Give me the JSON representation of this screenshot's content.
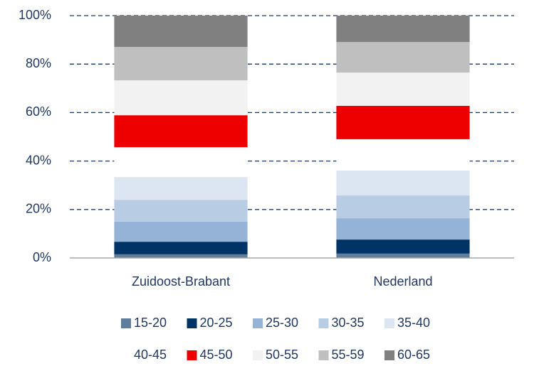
{
  "chart_data": {
    "type": "bar",
    "stacked": true,
    "categories": [
      "Zuidoost-Brabant",
      "Nederland"
    ],
    "series": [
      {
        "name": "15-20",
        "color": "#5f7d9c",
        "values": [
          1.5,
          1.8
        ]
      },
      {
        "name": "20-25",
        "color": "#003366",
        "values": [
          5.2,
          5.8
        ]
      },
      {
        "name": "25-30",
        "color": "#95b3d7",
        "values": [
          8.3,
          8.8
        ]
      },
      {
        "name": "30-35",
        "color": "#b8cce4",
        "values": [
          9.0,
          9.4
        ]
      },
      {
        "name": "35-40",
        "color": "#dce6f2",
        "values": [
          9.4,
          10.3
        ]
      },
      {
        "name": "40-45",
        "color": "#ffffff",
        "values": [
          12.3,
          12.9
        ]
      },
      {
        "name": "45-50",
        "color": "#ee0000",
        "values": [
          13.2,
          13.8
        ]
      },
      {
        "name": "50-55",
        "color": "#f2f2f2",
        "values": [
          14.4,
          13.7
        ]
      },
      {
        "name": "55-59",
        "color": "#bfbfbf",
        "values": [
          13.8,
          12.6
        ]
      },
      {
        "name": "60-65",
        "color": "#808080",
        "values": [
          12.9,
          10.9
        ]
      }
    ],
    "ylim": [
      0,
      100
    ],
    "yticks": [
      {
        "value": 0,
        "label": "0%"
      },
      {
        "value": 20,
        "label": "20%"
      },
      {
        "value": 40,
        "label": "40%"
      },
      {
        "value": 60,
        "label": "60%"
      },
      {
        "value": 80,
        "label": "80%"
      },
      {
        "value": 100,
        "label": "100%"
      }
    ],
    "grid": true,
    "legend": "bottom"
  }
}
